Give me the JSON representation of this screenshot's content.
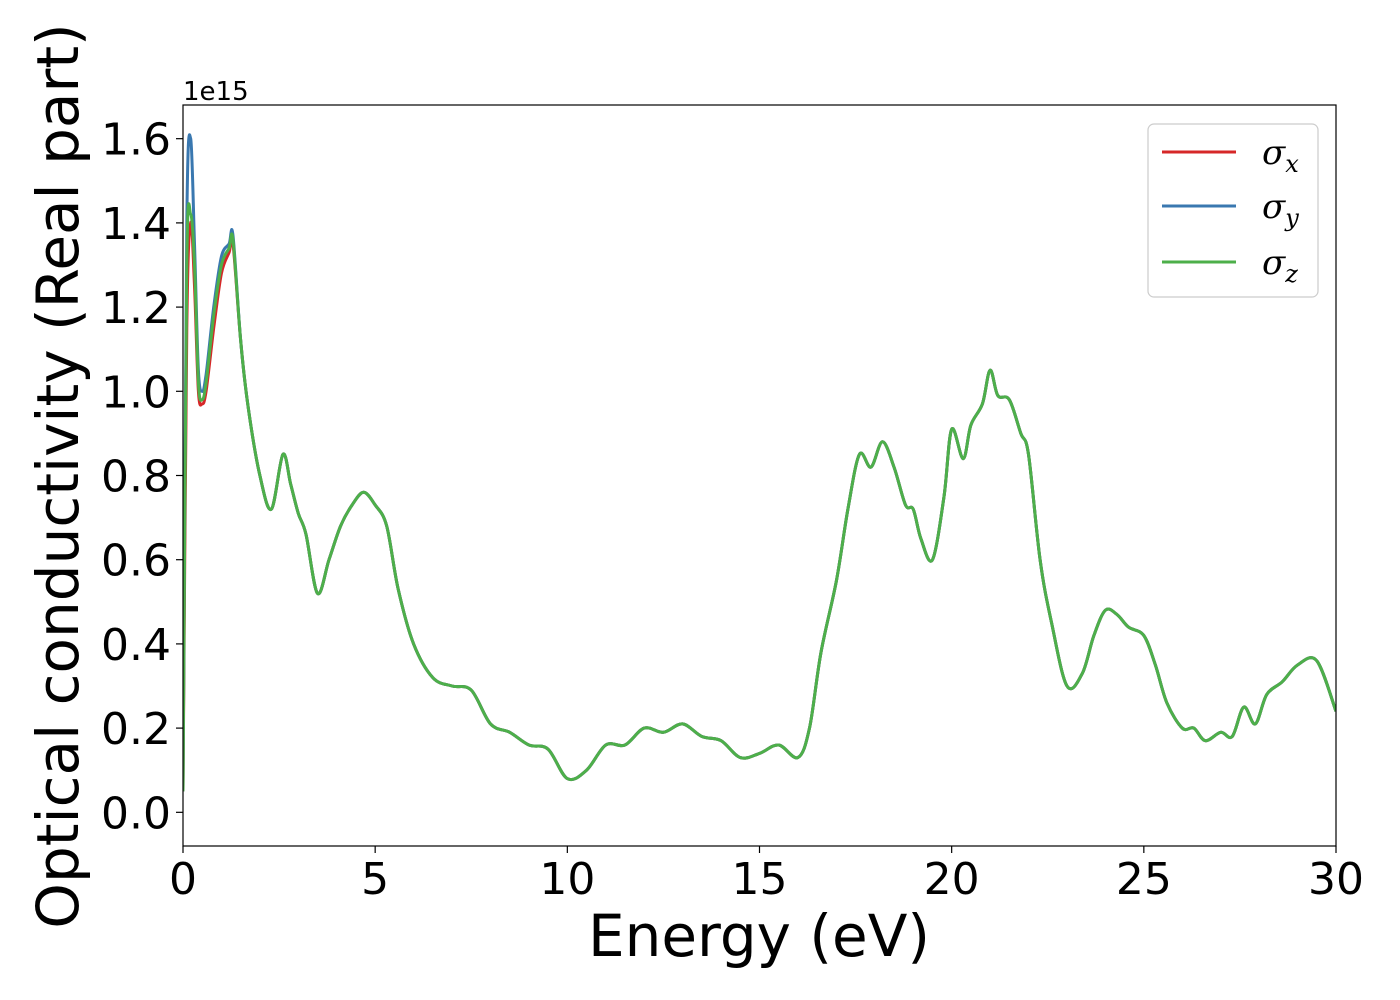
{
  "chart_data": {
    "type": "line",
    "xlabel": "Energy (eV)",
    "ylabel": "Optical conductivity (Real part)",
    "y_offset_label": "1e15",
    "xlim": [
      0,
      30
    ],
    "ylim": [
      -0.08,
      1.68
    ],
    "xticks": [
      0,
      5,
      10,
      15,
      20,
      25,
      30
    ],
    "xtick_labels": [
      "0",
      "5",
      "10",
      "15",
      "20",
      "25",
      "30"
    ],
    "yticks": [
      0.0,
      0.2,
      0.4,
      0.6,
      0.8,
      1.0,
      1.2,
      1.4,
      1.6
    ],
    "ytick_labels": [
      "0.0",
      "0.2",
      "0.4",
      "0.6",
      "0.8",
      "1.0",
      "1.2",
      "1.4",
      "1.6"
    ],
    "grid": false,
    "legend_position": "top-right",
    "legend": [
      {
        "symbol": "σ",
        "sub": "x",
        "color": "#d62728"
      },
      {
        "symbol": "σ",
        "sub": "y",
        "color": "#3a78b0"
      },
      {
        "symbol": "σ",
        "sub": "z",
        "color": "#4daf4a"
      }
    ],
    "series": [
      {
        "name": "σx",
        "color": "#d62728",
        "x": [
          0,
          0.1,
          0.2,
          0.3,
          0.4,
          0.5,
          0.6,
          0.8,
          1.0,
          1.2,
          1.3,
          1.5,
          1.7,
          2.0,
          2.3,
          2.6,
          2.8,
          3.0,
          3.2,
          3.5,
          3.8,
          4.1,
          4.4,
          4.7,
          5.0,
          5.3,
          5.6,
          6.0,
          6.5,
          7.0,
          7.5,
          8.0,
          8.5,
          9.0,
          9.5,
          10.0,
          10.5,
          11.0,
          11.5,
          12.0,
          12.5,
          13.0,
          13.5,
          14.0,
          14.5,
          15.0,
          15.5,
          16.0,
          16.3,
          16.6,
          17.0,
          17.3,
          17.6,
          17.9,
          18.2,
          18.5,
          18.8,
          19.0,
          19.2,
          19.5,
          19.8,
          20.0,
          20.3,
          20.5,
          20.8,
          21.0,
          21.2,
          21.5,
          21.8,
          22.0,
          22.3,
          22.6,
          23.0,
          23.4,
          23.7,
          24.0,
          24.3,
          24.6,
          25.0,
          25.3,
          25.6,
          26.0,
          26.3,
          26.6,
          27.0,
          27.3,
          27.6,
          27.9,
          28.2,
          28.6,
          29.0,
          29.5,
          30.0
        ],
        "y": [
          0.05,
          1.15,
          1.4,
          1.25,
          1.0,
          0.97,
          1.0,
          1.15,
          1.28,
          1.33,
          1.35,
          1.12,
          0.96,
          0.8,
          0.72,
          0.85,
          0.78,
          0.71,
          0.66,
          0.52,
          0.6,
          0.68,
          0.73,
          0.76,
          0.73,
          0.68,
          0.53,
          0.4,
          0.32,
          0.3,
          0.29,
          0.21,
          0.19,
          0.16,
          0.15,
          0.08,
          0.1,
          0.16,
          0.16,
          0.2,
          0.19,
          0.21,
          0.18,
          0.17,
          0.13,
          0.14,
          0.16,
          0.13,
          0.2,
          0.38,
          0.55,
          0.72,
          0.85,
          0.82,
          0.88,
          0.82,
          0.73,
          0.72,
          0.65,
          0.6,
          0.75,
          0.91,
          0.84,
          0.92,
          0.97,
          1.05,
          0.99,
          0.98,
          0.9,
          0.85,
          0.6,
          0.45,
          0.3,
          0.33,
          0.42,
          0.48,
          0.47,
          0.44,
          0.42,
          0.35,
          0.26,
          0.2,
          0.2,
          0.17,
          0.19,
          0.18,
          0.25,
          0.21,
          0.28,
          0.31,
          0.35,
          0.36,
          0.24
        ]
      },
      {
        "name": "σy",
        "color": "#3a78b0",
        "x": [
          0,
          0.1,
          0.2,
          0.3,
          0.4,
          0.5,
          0.6,
          0.8,
          1.0,
          1.2,
          1.3,
          1.5,
          1.7,
          2.0,
          2.3,
          2.6,
          2.8,
          3.0,
          3.2,
          3.5,
          3.8,
          4.1,
          4.4,
          4.7,
          5.0,
          5.3,
          5.6,
          6.0,
          6.5,
          7.0,
          7.5,
          8.0,
          8.5,
          9.0,
          9.5,
          10.0,
          10.5,
          11.0,
          11.5,
          12.0,
          12.5,
          13.0,
          13.5,
          14.0,
          14.5,
          15.0,
          15.5,
          16.0,
          16.3,
          16.6,
          17.0,
          17.3,
          17.6,
          17.9,
          18.2,
          18.5,
          18.8,
          19.0,
          19.2,
          19.5,
          19.8,
          20.0,
          20.3,
          20.5,
          20.8,
          21.0,
          21.2,
          21.5,
          21.8,
          22.0,
          22.3,
          22.6,
          23.0,
          23.4,
          23.7,
          24.0,
          24.3,
          24.6,
          25.0,
          25.3,
          25.6,
          26.0,
          26.3,
          26.6,
          27.0,
          27.3,
          27.6,
          27.9,
          28.2,
          28.6,
          29.0,
          29.5,
          30.0
        ],
        "y": [
          0.05,
          1.4,
          1.6,
          1.35,
          1.05,
          1.0,
          1.04,
          1.2,
          1.32,
          1.35,
          1.37,
          1.12,
          0.96,
          0.8,
          0.72,
          0.85,
          0.78,
          0.71,
          0.66,
          0.52,
          0.6,
          0.68,
          0.73,
          0.76,
          0.73,
          0.68,
          0.53,
          0.4,
          0.32,
          0.3,
          0.29,
          0.21,
          0.19,
          0.16,
          0.15,
          0.08,
          0.1,
          0.16,
          0.16,
          0.2,
          0.19,
          0.21,
          0.18,
          0.17,
          0.13,
          0.14,
          0.16,
          0.13,
          0.2,
          0.38,
          0.55,
          0.72,
          0.85,
          0.82,
          0.88,
          0.82,
          0.73,
          0.72,
          0.65,
          0.6,
          0.75,
          0.91,
          0.84,
          0.92,
          0.97,
          1.05,
          0.99,
          0.98,
          0.9,
          0.85,
          0.6,
          0.45,
          0.3,
          0.33,
          0.42,
          0.48,
          0.47,
          0.44,
          0.42,
          0.35,
          0.26,
          0.2,
          0.2,
          0.17,
          0.19,
          0.18,
          0.25,
          0.21,
          0.28,
          0.31,
          0.35,
          0.36,
          0.24
        ]
      },
      {
        "name": "σz",
        "color": "#4daf4a",
        "x": [
          0,
          0.1,
          0.2,
          0.3,
          0.4,
          0.5,
          0.6,
          0.8,
          1.0,
          1.2,
          1.3,
          1.5,
          1.7,
          2.0,
          2.3,
          2.6,
          2.8,
          3.0,
          3.2,
          3.5,
          3.8,
          4.1,
          4.4,
          4.7,
          5.0,
          5.3,
          5.6,
          6.0,
          6.5,
          7.0,
          7.5,
          8.0,
          8.5,
          9.0,
          9.5,
          10.0,
          10.5,
          11.0,
          11.5,
          12.0,
          12.5,
          13.0,
          13.5,
          14.0,
          14.5,
          15.0,
          15.5,
          16.0,
          16.3,
          16.6,
          17.0,
          17.3,
          17.6,
          17.9,
          18.2,
          18.5,
          18.8,
          19.0,
          19.2,
          19.5,
          19.8,
          20.0,
          20.3,
          20.5,
          20.8,
          21.0,
          21.2,
          21.5,
          21.8,
          22.0,
          22.3,
          22.6,
          23.0,
          23.4,
          23.7,
          24.0,
          24.3,
          24.6,
          25.0,
          25.3,
          25.6,
          26.0,
          26.3,
          26.6,
          27.0,
          27.3,
          27.6,
          27.9,
          28.2,
          28.6,
          29.0,
          29.5,
          30.0
        ],
        "y": [
          0.05,
          1.3,
          1.42,
          1.3,
          1.02,
          0.98,
          1.02,
          1.18,
          1.3,
          1.34,
          1.36,
          1.12,
          0.96,
          0.8,
          0.72,
          0.85,
          0.78,
          0.71,
          0.66,
          0.52,
          0.6,
          0.68,
          0.73,
          0.76,
          0.73,
          0.68,
          0.53,
          0.4,
          0.32,
          0.3,
          0.29,
          0.21,
          0.19,
          0.16,
          0.15,
          0.08,
          0.1,
          0.16,
          0.16,
          0.2,
          0.19,
          0.21,
          0.18,
          0.17,
          0.13,
          0.14,
          0.16,
          0.13,
          0.2,
          0.38,
          0.55,
          0.72,
          0.85,
          0.82,
          0.88,
          0.82,
          0.73,
          0.72,
          0.65,
          0.6,
          0.75,
          0.91,
          0.84,
          0.92,
          0.97,
          1.05,
          0.99,
          0.98,
          0.9,
          0.85,
          0.6,
          0.45,
          0.3,
          0.33,
          0.42,
          0.48,
          0.47,
          0.44,
          0.42,
          0.35,
          0.26,
          0.2,
          0.2,
          0.17,
          0.19,
          0.18,
          0.25,
          0.21,
          0.28,
          0.31,
          0.35,
          0.36,
          0.24
        ]
      }
    ]
  }
}
